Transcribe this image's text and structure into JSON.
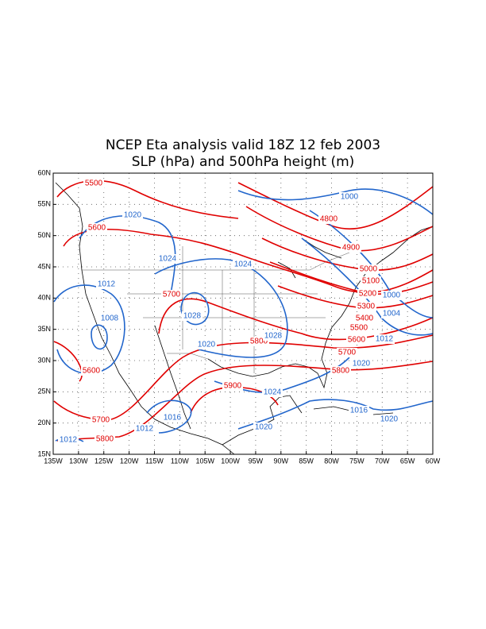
{
  "title": [
    "NCEP Eta analysis valid 18Z 12 feb 2003",
    "SLP (hPa) and 500hPa height (m)"
  ],
  "lon_labels": [
    "135W",
    "130W",
    "125W",
    "120W",
    "115W",
    "110W",
    "105W",
    "100W",
    "95W",
    "90W",
    "85W",
    "80W",
    "75W",
    "70W",
    "65W",
    "60W"
  ],
  "lat_labels": [
    "60N",
    "55N",
    "50N",
    "45N",
    "40N",
    "35N",
    "30N",
    "25N",
    "20N",
    "15N"
  ],
  "height_labels": [
    "5500",
    "5600",
    "5700",
    "5800",
    "5900",
    "5600",
    "5700",
    "5800",
    "4800",
    "4900",
    "5000",
    "5100",
    "5200",
    "5300",
    "5400",
    "5500",
    "5600",
    "5700",
    "5800"
  ],
  "slp_labels": [
    "1000",
    "1020",
    "1024",
    "1024",
    "1012",
    "1008",
    "1028",
    "1028",
    "1020",
    "1024",
    "1016",
    "1012",
    "1012",
    "1020",
    "1016",
    "1020",
    "1000",
    "1004",
    "1012",
    "1020"
  ]
}
